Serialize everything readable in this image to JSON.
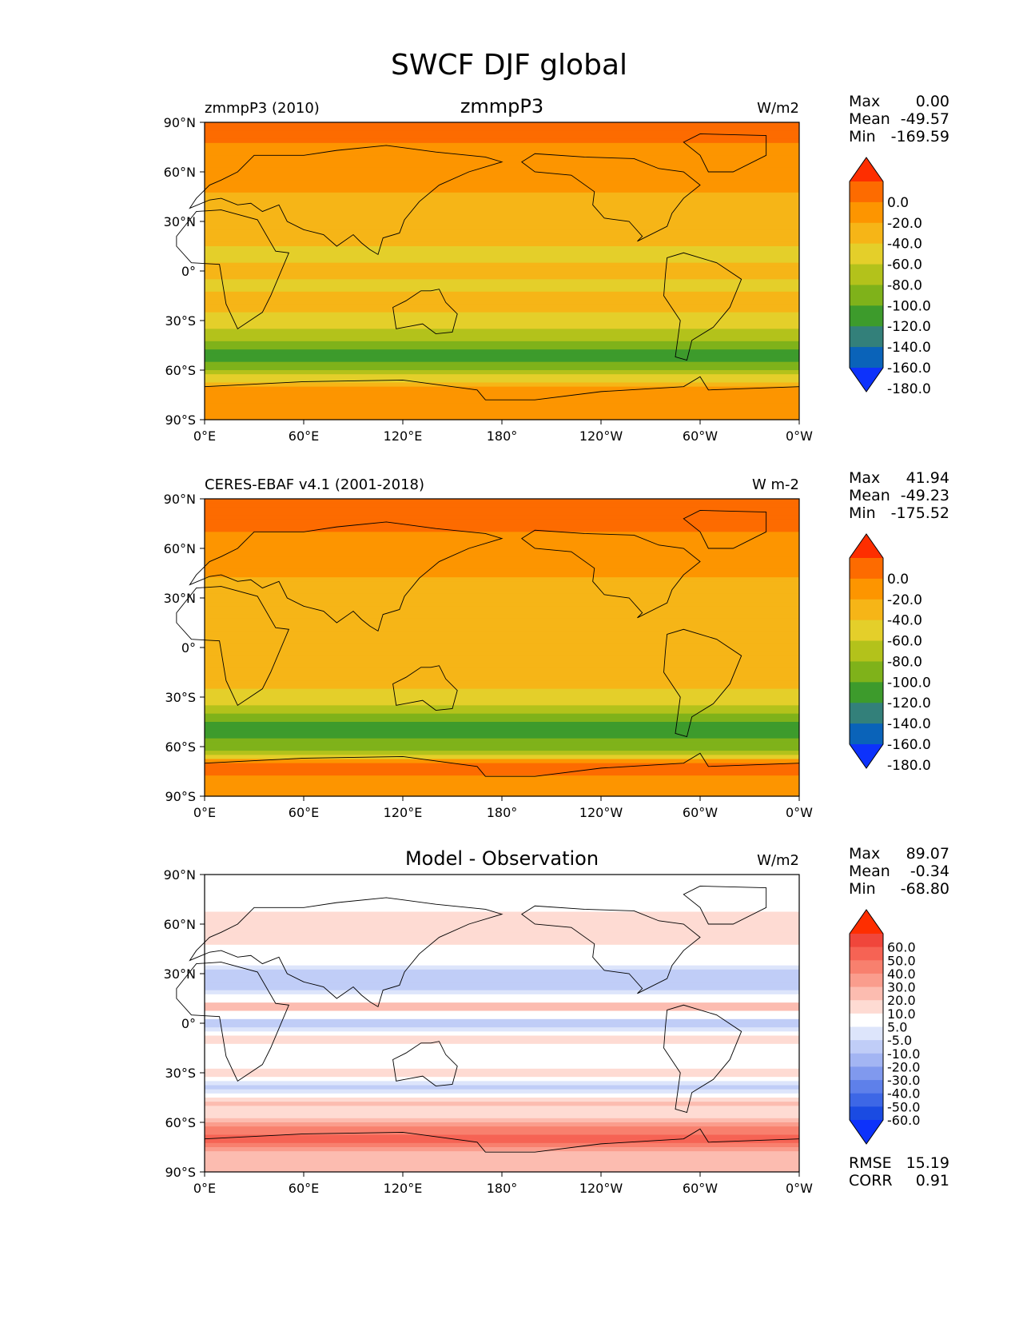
{
  "figure": {
    "title": "SWCF DJF global"
  },
  "chart_data": [
    {
      "type": "heatmap",
      "panel_left_label": "zmmpP3 (2010)",
      "panel_center_label": "zmmpP3",
      "units": "W/m2",
      "stats": [
        {
          "label": "Max",
          "value": "0.00"
        },
        {
          "label": "Mean",
          "value": "-49.57"
        },
        {
          "label": "Min",
          "value": "-169.59"
        }
      ],
      "x_ticks": [
        "0°E",
        "60°E",
        "120°E",
        "180°",
        "120°W",
        "60°W",
        "0°W"
      ],
      "y_ticks": [
        "90°N",
        "60°N",
        "30°N",
        "0°",
        "30°S",
        "60°S",
        "90°S"
      ],
      "xlim": [
        0,
        360
      ],
      "ylim": [
        -90,
        90
      ],
      "colorbar": {
        "ticks": [
          "0.0",
          "-20.0",
          "-40.0",
          "-60.0",
          "-80.0",
          "-100.0",
          "-120.0",
          "-140.0",
          "-160.0",
          "-180.0"
        ],
        "colors": [
          "#fe2e00",
          "#fd6b00",
          "#fd9500",
          "#f6b517",
          "#e4cf2a",
          "#b3c21b",
          "#7fb21a",
          "#3d9b2c",
          "#33807a",
          "#0a63b9",
          "#0d32fb"
        ]
      },
      "zonal_profile": [
        {
          "lat": 90,
          "value": -5
        },
        {
          "lat": 80,
          "value": -18
        },
        {
          "lat": 70,
          "value": -24
        },
        {
          "lat": 60,
          "value": -28
        },
        {
          "lat": 50,
          "value": -36
        },
        {
          "lat": 40,
          "value": -48
        },
        {
          "lat": 30,
          "value": -55
        },
        {
          "lat": 20,
          "value": -58
        },
        {
          "lat": 10,
          "value": -62
        },
        {
          "lat": 0,
          "value": -58
        },
        {
          "lat": -10,
          "value": -62
        },
        {
          "lat": -20,
          "value": -55
        },
        {
          "lat": -30,
          "value": -68
        },
        {
          "lat": -40,
          "value": -92
        },
        {
          "lat": -45,
          "value": -118
        },
        {
          "lat": -50,
          "value": -125
        },
        {
          "lat": -55,
          "value": -122
        },
        {
          "lat": -60,
          "value": -100
        },
        {
          "lat": -65,
          "value": -70
        },
        {
          "lat": -70,
          "value": -30
        },
        {
          "lat": -80,
          "value": -25
        },
        {
          "lat": -90,
          "value": -25
        }
      ]
    },
    {
      "type": "heatmap",
      "panel_left_label": "CERES-EBAF v4.1 (2001-2018)",
      "panel_center_label": "",
      "units": "W m-2",
      "stats": [
        {
          "label": "Max",
          "value": "41.94"
        },
        {
          "label": "Mean",
          "value": "-49.23"
        },
        {
          "label": "Min",
          "value": "-175.52"
        }
      ],
      "x_ticks": [
        "0°E",
        "60°E",
        "120°E",
        "180°",
        "120°W",
        "60°W",
        "0°W"
      ],
      "y_ticks": [
        "90°N",
        "60°N",
        "30°N",
        "0°",
        "30°S",
        "60°S",
        "90°S"
      ],
      "xlim": [
        0,
        360
      ],
      "ylim": [
        -90,
        90
      ],
      "colorbar": {
        "ticks": [
          "0.0",
          "-20.0",
          "-40.0",
          "-60.0",
          "-80.0",
          "-100.0",
          "-120.0",
          "-140.0",
          "-160.0",
          "-180.0"
        ],
        "colors": [
          "#fe2e00",
          "#fd6b00",
          "#fd9500",
          "#f6b517",
          "#e4cf2a",
          "#b3c21b",
          "#7fb21a",
          "#3d9b2c",
          "#33807a",
          "#0a63b9",
          "#0d32fb"
        ]
      },
      "zonal_profile": [
        {
          "lat": 90,
          "value": -5
        },
        {
          "lat": 80,
          "value": -5
        },
        {
          "lat": 70,
          "value": -22
        },
        {
          "lat": 60,
          "value": -30
        },
        {
          "lat": 50,
          "value": -35
        },
        {
          "lat": 40,
          "value": -42
        },
        {
          "lat": 30,
          "value": -45
        },
        {
          "lat": 20,
          "value": -50
        },
        {
          "lat": 10,
          "value": -48
        },
        {
          "lat": 0,
          "value": -52
        },
        {
          "lat": -10,
          "value": -58
        },
        {
          "lat": -20,
          "value": -52
        },
        {
          "lat": -30,
          "value": -70
        },
        {
          "lat": -40,
          "value": -95
        },
        {
          "lat": -45,
          "value": -118
        },
        {
          "lat": -50,
          "value": -128
        },
        {
          "lat": -55,
          "value": -122
        },
        {
          "lat": -60,
          "value": -110
        },
        {
          "lat": -65,
          "value": -82
        },
        {
          "lat": -70,
          "value": -10
        },
        {
          "lat": -80,
          "value": -25
        },
        {
          "lat": -90,
          "value": -25
        }
      ]
    },
    {
      "type": "heatmap",
      "panel_left_label": "",
      "panel_center_label": "Model - Observation",
      "units": "W/m2",
      "stats": [
        {
          "label": "Max",
          "value": "89.07"
        },
        {
          "label": "Mean",
          "value": "-0.34"
        },
        {
          "label": "Min",
          "value": "-68.80"
        }
      ],
      "extra_stats": [
        {
          "label": "RMSE",
          "value": "15.19"
        },
        {
          "label": "CORR",
          "value": "0.91"
        }
      ],
      "x_ticks": [
        "0°E",
        "60°E",
        "120°E",
        "180°",
        "120°W",
        "60°W",
        "0°W"
      ],
      "y_ticks": [
        "90°N",
        "60°N",
        "30°N",
        "0°",
        "30°S",
        "60°S",
        "90°S"
      ],
      "xlim": [
        0,
        360
      ],
      "ylim": [
        -90,
        90
      ],
      "colorbar": {
        "ticks": [
          "60.0",
          "50.0",
          "40.0",
          "30.0",
          "20.0",
          "10.0",
          "5.0",
          "-5.0",
          "-10.0",
          "-20.0",
          "-30.0",
          "-40.0",
          "-50.0",
          "-60.0"
        ],
        "colors": [
          "#fe2e00",
          "#f0463b",
          "#f66354",
          "#f8806e",
          "#fa9d8d",
          "#fcbcb0",
          "#fedbd3",
          "#ffffff",
          "#dde5fb",
          "#c0cdf7",
          "#a3b5f3",
          "#8099ee",
          "#5e80ea",
          "#3d67e6",
          "#1a4be2",
          "#0d32fb"
        ]
      },
      "zonal_profile": [
        {
          "lat": 90,
          "value": 0
        },
        {
          "lat": 80,
          "value": 3
        },
        {
          "lat": 70,
          "value": 4
        },
        {
          "lat": 60,
          "value": 8
        },
        {
          "lat": 50,
          "value": 6
        },
        {
          "lat": 40,
          "value": 2
        },
        {
          "lat": 30,
          "value": -12
        },
        {
          "lat": 20,
          "value": -10
        },
        {
          "lat": 10,
          "value": 14
        },
        {
          "lat": 0,
          "value": -14
        },
        {
          "lat": -10,
          "value": 8
        },
        {
          "lat": -20,
          "value": -4
        },
        {
          "lat": -30,
          "value": 10
        },
        {
          "lat": -40,
          "value": -14
        },
        {
          "lat": -45,
          "value": 8
        },
        {
          "lat": -50,
          "value": 12
        },
        {
          "lat": -55,
          "value": 4
        },
        {
          "lat": -60,
          "value": 25
        },
        {
          "lat": -65,
          "value": 35
        },
        {
          "lat": -70,
          "value": 45
        },
        {
          "lat": -80,
          "value": 12
        },
        {
          "lat": -90,
          "value": 10
        }
      ]
    }
  ]
}
